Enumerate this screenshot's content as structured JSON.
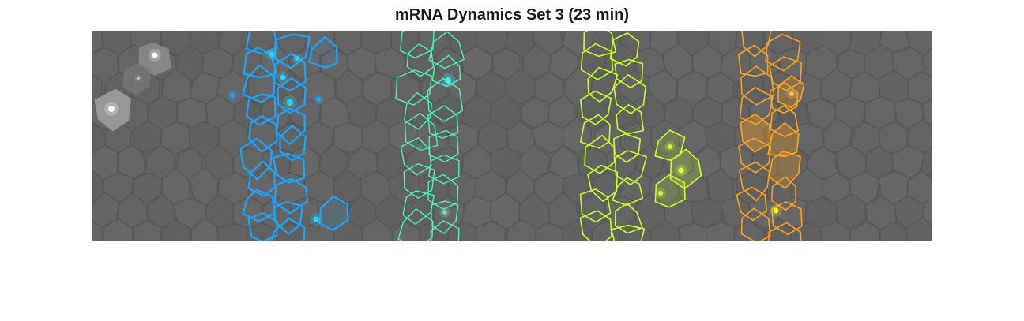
{
  "figure": {
    "title": "mRNA Dynamics Set 3 (23 min)"
  },
  "colors": {
    "background_tissue": "#636363",
    "cell_edge_base": "#575757",
    "column_1": "#1aa6ff",
    "column_2": "#4cf2c0",
    "column_3": "#c8ff2a",
    "column_4": "#ffa41a",
    "column_0_spots": "#ffffff"
  }
}
